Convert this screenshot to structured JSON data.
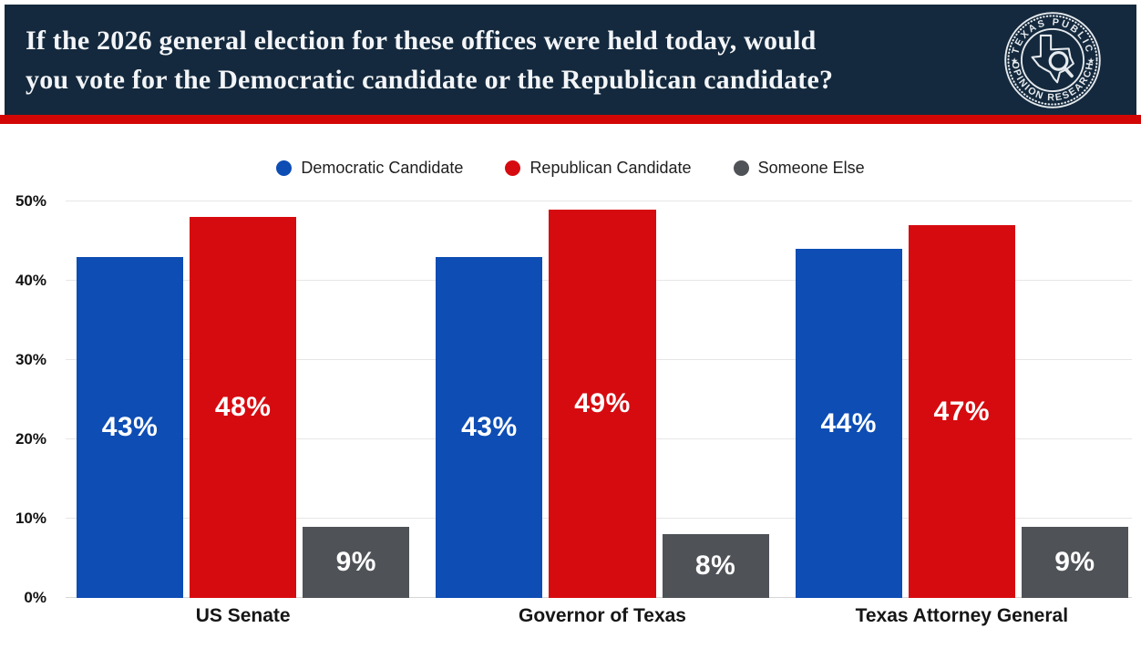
{
  "header": {
    "question_lines": [
      "If the 2026 general election for these offices were held today, would",
      "you vote for the Democratic candidate or the Republican candidate?"
    ]
  },
  "logo": {
    "top_text": "TEXAS PUBLIC",
    "bottom_text": "OPINION RESEARCH",
    "star": "★"
  },
  "colors": {
    "header_bg": "#14293d",
    "stripe_red": "#d20705",
    "democratic_blue": "#0d4db4",
    "republican_red": "#d60b10",
    "someone_else_gray": "#4f5257",
    "gridline": "#e6e6e6",
    "axis_line": "#d7d7d7",
    "label_dark": "#161616",
    "bar_label_white": "#ffffff"
  },
  "chart_data": {
    "type": "bar",
    "title": "If the 2026 general election for these offices were held today, would you vote for the Democratic candidate or the Republican candidate?",
    "categories": [
      "US Senate",
      "Governor of Texas",
      "Texas Attorney General"
    ],
    "series": [
      {
        "name": "Democratic Candidate",
        "color": "#0d4db4",
        "values": [
          43,
          43,
          44
        ]
      },
      {
        "name": "Republican Candidate",
        "color": "#d60b10",
        "values": [
          48,
          49,
          47
        ]
      },
      {
        "name": "Someone Else",
        "color": "#4f5257",
        "values": [
          9,
          8,
          9
        ]
      }
    ],
    "value_suffix": "%",
    "xlabel": "",
    "ylabel": "",
    "ylim": [
      0,
      50
    ],
    "yticks": [
      "0%",
      "10%",
      "20%",
      "30%",
      "40%",
      "50%"
    ],
    "grid": true,
    "legend_position": "top"
  }
}
